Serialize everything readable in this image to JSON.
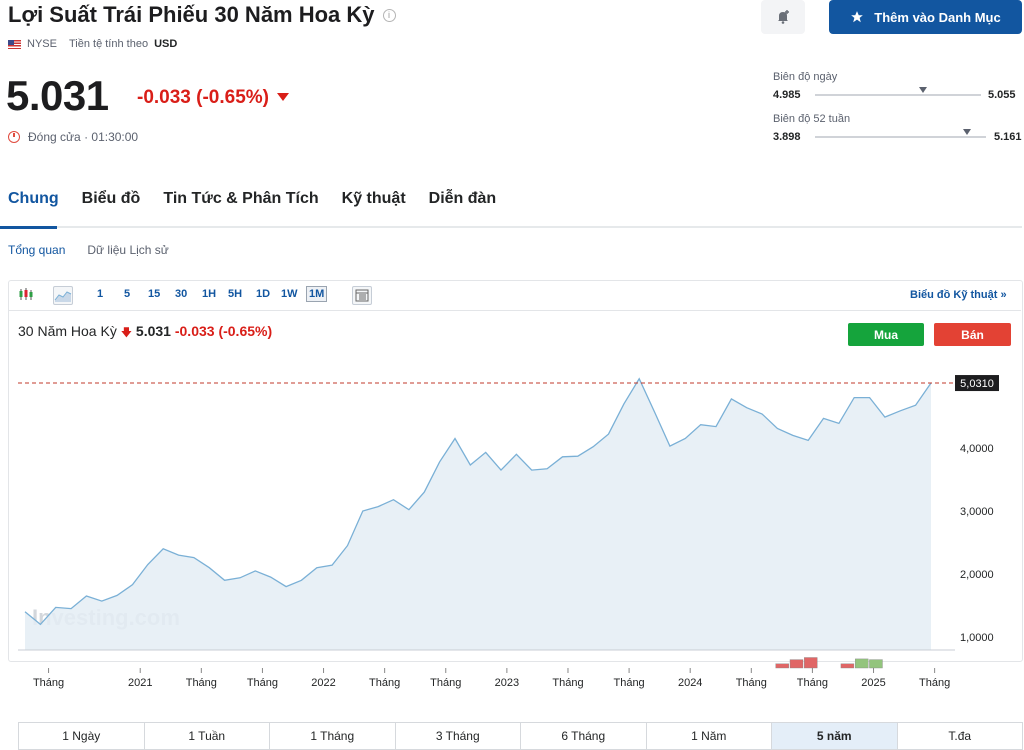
{
  "header": {
    "title": "Lợi Suất Trái Phiếu 30 Năm Hoa Kỳ",
    "exchange": "NYSE",
    "currency_label": "Tiền tệ tính theo",
    "currency": "USD",
    "watchlist_button": "Thêm vào Danh Mục"
  },
  "quote": {
    "price": "5.031",
    "change": "-0.033 (-0.65%)",
    "status": "Đóng cửa · 01:30:00"
  },
  "ranges": {
    "day": {
      "label": "Biên độ ngày",
      "low": "4.985",
      "high": "5.055",
      "position": 0.68
    },
    "week52": {
      "label": "Biên độ 52 tuần",
      "low": "3.898",
      "high": "5.161",
      "position": 0.9
    }
  },
  "tabs": [
    "Chung",
    "Biểu đồ",
    "Tin Tức & Phân Tích",
    "Kỹ thuật",
    "Diễn đàn"
  ],
  "subtabs": [
    "Tổng quan",
    "Dữ liệu Lịch sử"
  ],
  "toolbar": {
    "intervals": [
      "1",
      "5",
      "15",
      "30",
      "1H",
      "5H",
      "1D",
      "1W",
      "1M"
    ],
    "selected": "1M",
    "tech_chart_link": "Biểu đồ Kỹ thuật »"
  },
  "chart_header": {
    "instrument": "30 Năm Hoa Kỳ",
    "price": "5.031",
    "change": "-0.033 (-0.65%)",
    "buy": "Mua",
    "sell": "Bán"
  },
  "watermark": "Investing.com",
  "chart_data": {
    "type": "area",
    "title": "",
    "current_value_label": "5,0310",
    "y_ticks": [
      "1,0000",
      "2,0000",
      "3,0000",
      "4,0000"
    ],
    "y_tick_values": [
      1,
      2,
      3,
      4
    ],
    "ylim": [
      0.8,
      5.35
    ],
    "x_tick_labels": [
      "Tháng",
      "2021",
      "Tháng",
      "Tháng",
      "2022",
      "Tháng",
      "Tháng",
      "2023",
      "Tháng",
      "Tháng",
      "2024",
      "Tháng",
      "Tháng",
      "2025",
      "Tháng"
    ],
    "x_tick_positions": [
      3,
      12,
      18,
      24,
      30,
      36,
      42,
      48,
      54,
      60,
      66,
      72,
      78,
      84,
      90
    ],
    "values": [
      1.4,
      1.2,
      1.47,
      1.45,
      1.65,
      1.57,
      1.66,
      1.83,
      2.15,
      2.4,
      2.3,
      2.26,
      2.1,
      1.9,
      1.94,
      2.05,
      1.95,
      1.8,
      1.9,
      2.1,
      2.14,
      2.45,
      3.0,
      3.07,
      3.18,
      3.02,
      3.3,
      3.78,
      4.15,
      3.73,
      3.93,
      3.65,
      3.9,
      3.65,
      3.67,
      3.86,
      3.87,
      4.02,
      4.22,
      4.7,
      5.1,
      4.57,
      4.03,
      4.15,
      4.37,
      4.34,
      4.78,
      4.64,
      4.54,
      4.31,
      4.2,
      4.12,
      4.47,
      4.39,
      4.8,
      4.8,
      4.49,
      4.59,
      4.68,
      5.031
    ],
    "volume_bars": [
      {
        "index": 74.4,
        "value": 0.3,
        "color": "#e06666"
      },
      {
        "index": 75.8,
        "value": 0.6,
        "color": "#e06666"
      },
      {
        "index": 77.2,
        "value": 0.75,
        "color": "#e06666"
      },
      {
        "index": 80.8,
        "value": 0.3,
        "color": "#e06666"
      },
      {
        "index": 82.2,
        "value": 0.65,
        "color": "#93c47d"
      },
      {
        "index": 83.6,
        "value": 0.6,
        "color": "#93c47d"
      }
    ],
    "colors": {
      "line": "#7ab0d6",
      "fill": "#e4edf4",
      "current_line": "#c0392b"
    }
  },
  "range_bar": {
    "items": [
      "1 Ngày",
      "1 Tuần",
      "1 Tháng",
      "3 Tháng",
      "6 Tháng",
      "1 Năm",
      "5 năm",
      "T.đa"
    ],
    "selected": "5 năm"
  }
}
